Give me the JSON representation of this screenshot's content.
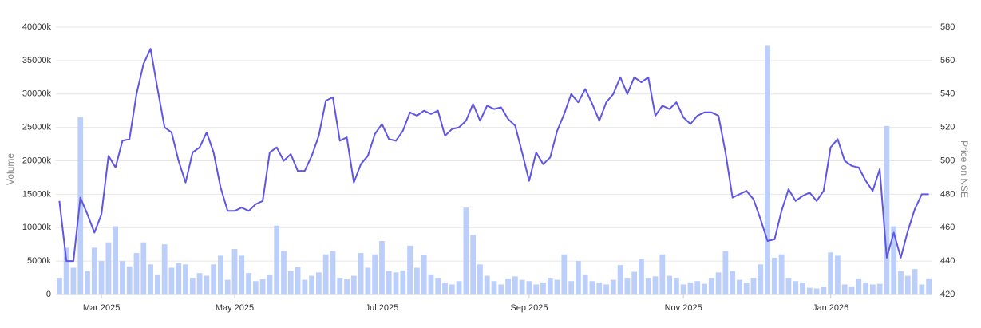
{
  "chart_data": {
    "type": "combo",
    "ylabel": "Volume",
    "y2label": "Price on NSE",
    "categories": [
      null,
      null,
      null,
      null,
      null,
      null,
      "Mar 2025",
      null,
      null,
      null,
      null,
      null,
      null,
      null,
      null,
      null,
      null,
      null,
      null,
      null,
      null,
      null,
      null,
      null,
      null,
      "May 2025",
      null,
      null,
      null,
      null,
      null,
      null,
      null,
      null,
      null,
      null,
      null,
      null,
      null,
      null,
      null,
      null,
      null,
      null,
      null,
      null,
      "Jul 2025",
      null,
      null,
      null,
      null,
      null,
      null,
      null,
      null,
      null,
      null,
      null,
      null,
      null,
      null,
      null,
      null,
      null,
      null,
      null,
      null,
      "Sep 2025",
      null,
      null,
      null,
      null,
      null,
      null,
      null,
      null,
      null,
      null,
      null,
      null,
      null,
      null,
      null,
      null,
      null,
      null,
      null,
      null,
      null,
      "Nov 2025",
      null,
      null,
      null,
      null,
      null,
      null,
      null,
      null,
      null,
      null,
      null,
      null,
      null,
      null,
      null,
      null,
      null,
      null,
      null,
      null,
      "Jan 2026",
      null,
      null,
      null,
      null,
      null,
      null,
      null,
      null,
      null,
      null,
      null,
      null,
      null,
      null
    ],
    "series": [
      {
        "type": "bar",
        "color": "#bccffb",
        "values": [
          2500,
          7000,
          4000,
          26500,
          3500,
          7000,
          5000,
          7800,
          10200,
          5000,
          4200,
          6200,
          7800,
          4500,
          3000,
          7500,
          4000,
          4700,
          4500,
          2500,
          3200,
          2800,
          4500,
          5800,
          2200,
          6800,
          5800,
          3200,
          2000,
          2300,
          3000,
          10300,
          6500,
          3500,
          4100,
          2200,
          2800,
          3300,
          6000,
          6500,
          2500,
          2300,
          2800,
          6200,
          4000,
          6000,
          8000,
          3500,
          3300,
          3600,
          7300,
          4000,
          5900,
          3000,
          2500,
          1800,
          1500,
          2000,
          13000,
          8900,
          4500,
          2800,
          2000,
          1500,
          2400,
          2700,
          2200,
          2000,
          1500,
          1800,
          2500,
          2200,
          6000,
          2000,
          5000,
          3000,
          2000,
          1800,
          1500,
          2200,
          4400,
          2500,
          3400,
          5300,
          2500,
          2700,
          6000,
          2800,
          2500,
          1500,
          1800,
          2000,
          1600,
          2500,
          3300,
          6500,
          3500,
          2200,
          1800,
          2500,
          4500,
          37200,
          5500,
          6000,
          2500,
          2000,
          1800,
          1000,
          900,
          1200,
          6300,
          5800,
          1500,
          1200,
          2400,
          1800,
          1500,
          1600,
          25200,
          10200,
          3500,
          2800,
          3800,
          1500,
          2400
        ]
      },
      {
        "type": "line",
        "axis": "y2",
        "color": "#5f55e6",
        "values": [
          476,
          440,
          440,
          478,
          468,
          457,
          468,
          503,
          496,
          512,
          513,
          540,
          558,
          567,
          543,
          520,
          517,
          500,
          487,
          505,
          508,
          517,
          505,
          484,
          470,
          470,
          472,
          470,
          474,
          476,
          505,
          508,
          500,
          504,
          494,
          494,
          503,
          515,
          536,
          538,
          512,
          514,
          487,
          498,
          503,
          516,
          522,
          513,
          512,
          518,
          529,
          527,
          530,
          528,
          530,
          515,
          519,
          520,
          524,
          534,
          524,
          533,
          531,
          532,
          525,
          521,
          505,
          488,
          505,
          498,
          502,
          518,
          528,
          540,
          535,
          543,
          534,
          524,
          535,
          540,
          550,
          540,
          550,
          547,
          550,
          527,
          533,
          531,
          535,
          526,
          522,
          527,
          529,
          529,
          527,
          505,
          478,
          480,
          482,
          477,
          465,
          452,
          453,
          470,
          483,
          476,
          479,
          481,
          476,
          482,
          508,
          513,
          500,
          497,
          496,
          488,
          482,
          495,
          442,
          457,
          442,
          458,
          471,
          480,
          480
        ]
      }
    ],
    "ylim": [
      0,
      40000
    ],
    "yticks": [
      0,
      {
        "value": 5000,
        "label": "5000k"
      },
      {
        "value": 10000,
        "label": "10000k"
      },
      {
        "value": 15000,
        "label": "15000k"
      },
      {
        "value": 20000,
        "label": "20000k"
      },
      {
        "value": 25000,
        "label": "25000k"
      },
      {
        "value": 30000,
        "label": "30000k"
      },
      {
        "value": 35000,
        "label": "35000k"
      },
      {
        "value": 40000,
        "label": "40000k"
      }
    ],
    "y2lim": [
      420,
      580
    ],
    "y2ticks": [
      420,
      440,
      460,
      480,
      500,
      520,
      540,
      560,
      580
    ],
    "grid": true
  }
}
